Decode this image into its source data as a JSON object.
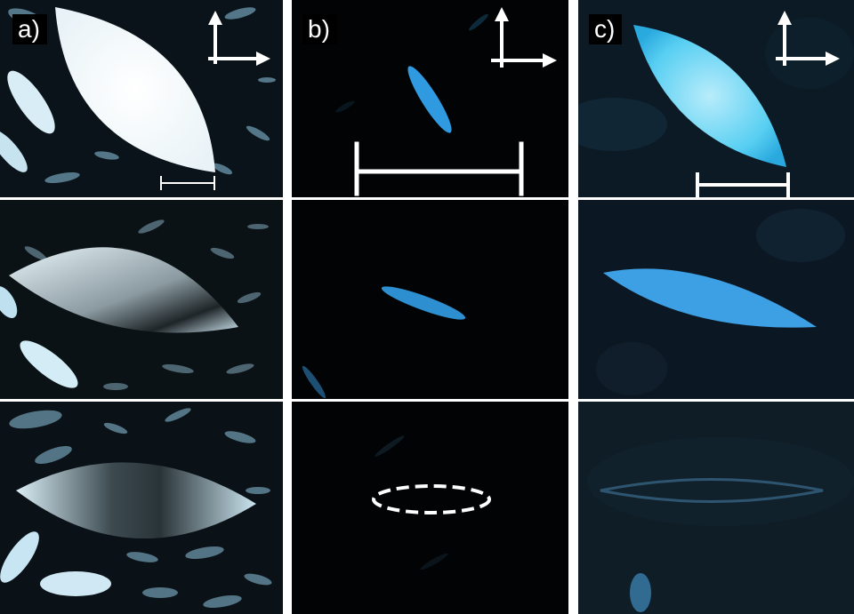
{
  "panels": [
    {
      "label": "a)"
    },
    {
      "label": "b)"
    },
    {
      "label": "c)"
    }
  ],
  "colors": {
    "background": "#000000",
    "separator": "#ffffff",
    "crystal_white": "#f2f8fb",
    "crystal_blue": "#3aa7e6",
    "crystal_cyan": "#3fd3f2",
    "scale_bar": "#ffffff"
  },
  "icons": [
    "crossed-polarizer-arrows-icon",
    "scale-bar",
    "dashed-ellipse-outline"
  ]
}
